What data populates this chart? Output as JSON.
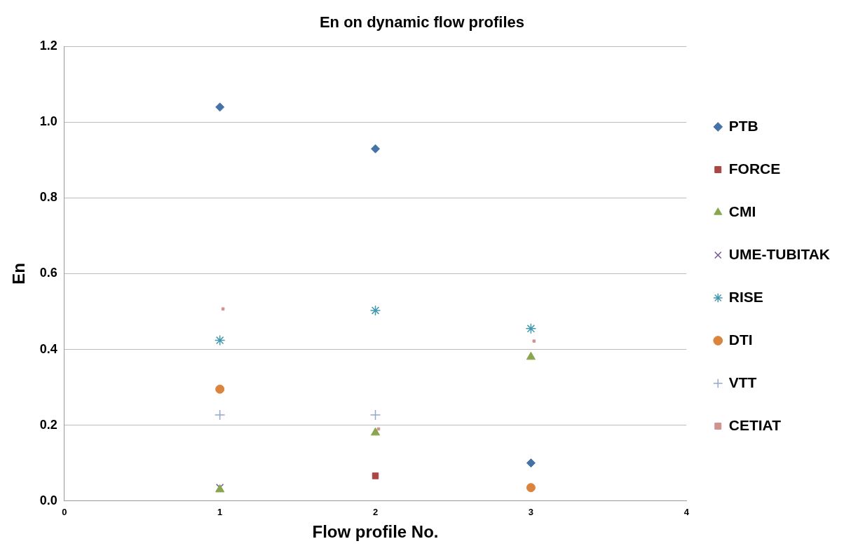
{
  "chart_data": {
    "type": "scatter",
    "title": "En on dynamic flow profiles",
    "xlabel": "Flow profile No.",
    "ylabel": "En",
    "xlim": [
      0,
      4
    ],
    "xticks": [
      0,
      1,
      2,
      3,
      4
    ],
    "ylim": [
      0,
      1.2
    ],
    "yticks": [
      {
        "value": 0,
        "label": "0.0"
      },
      {
        "value": 0.2,
        "label": "0.2"
      },
      {
        "value": 0.4,
        "label": "0.4"
      },
      {
        "value": 0.6,
        "label": "0.6"
      },
      {
        "value": 0.8,
        "label": "0.8"
      },
      {
        "value": 1,
        "label": "1.0"
      },
      {
        "value": 1.2,
        "label": "1.2"
      }
    ],
    "grid": "y",
    "legend": "right",
    "series": [
      {
        "name": "PTB",
        "color": "#4572a7",
        "marker": "diamond",
        "x": [
          1,
          2,
          3
        ],
        "values": [
          1.04,
          0.93,
          0.1
        ]
      },
      {
        "name": "FORCE",
        "color": "#aa4643",
        "marker": "square",
        "x": [
          2
        ],
        "values": [
          0.066
        ]
      },
      {
        "name": "CMI",
        "color": "#89a54e",
        "marker": "triangle",
        "x": [
          1,
          2,
          3
        ],
        "values": [
          0.03,
          0.18,
          0.38
        ]
      },
      {
        "name": "UME-TUBITAK",
        "color": "#71588f",
        "x": [
          1
        ],
        "values": [
          0.035
        ]
      },
      {
        "name": "RISE",
        "color": "#4198af",
        "x": [
          1,
          2,
          3
        ],
        "values": [
          0.424,
          0.503,
          0.455
        ]
      },
      {
        "name": "DTI",
        "color": "#db843d",
        "marker": "circle",
        "x": [
          1,
          3
        ],
        "values": [
          0.295,
          0.035
        ]
      },
      {
        "name": "VTT",
        "color": "#93a9cf",
        "x": [
          1,
          2
        ],
        "values": [
          0.227,
          0.227
        ]
      },
      {
        "name": "CETIAT",
        "color": "#d19392",
        "x": [
          1.02,
          2.02,
          3.02
        ],
        "values": [
          0.507,
          0.19,
          0.422
        ]
      }
    ]
  }
}
